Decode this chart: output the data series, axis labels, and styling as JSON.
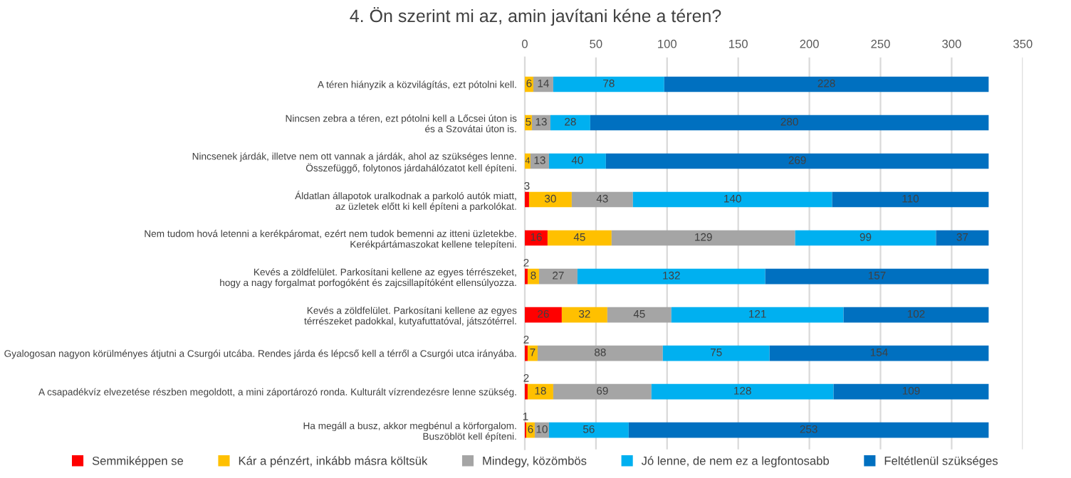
{
  "chart_data": {
    "type": "bar",
    "orientation": "horizontal",
    "stacked": true,
    "title": "4. Ön szerint mi az, amin javítani kéne a téren?",
    "categories": [
      "A téren hiányzik a közvilágítás, ezt pótolni kell.",
      "Nincsen zebra a téren, ezt pótolni kell a Lőcsei úton is\nés a Szovátai úton is.",
      "Nincsenek járdák, illetve nem ott vannak a járdák, ahol az szükséges lenne.\nÖsszefüggő, folytonos járdahálózatot kell építeni.",
      "Áldatlan állapotok uralkodnak a parkoló autók miatt,\naz üzletek előtt ki kell építeni a parkolókat.",
      "Nem tudom hová letenni a kerékpáromat, ezért nem tudok bemenni az itteni üzletekbe.\nKerékpártámaszokat kellene telepíteni.",
      "Kevés a zöldfelület. Parkosítani kellene az egyes térrészeket,\nhogy a nagy forgalmat porfogóként és zajcsillapítóként ellensúlyozza.",
      "Kevés a zöldfelület. Parkosítani kellene az egyes\ntérrészeket padokkal, kutyafuttatóval, játszótérrel.",
      "Gyalogosan nagyon körülményes átjutni a Csurgói utcába. Rendes járda és lépcső kell a térről a Csurgói utca irányába.",
      "A csapadékvíz elvezetése részben megoldott, a mini záportározó ronda. Kulturált vízrendezésre lenne szükség.",
      "Ha megáll a busz, akkor megbénul a körforgalom.\nBuszöblöt kell építeni."
    ],
    "series": [
      {
        "name": "Semmiképpen se",
        "color": "#ff0000",
        "values": [
          null,
          null,
          null,
          3,
          16,
          2,
          26,
          2,
          2,
          1
        ]
      },
      {
        "name": "Kár a pénzért, inkább másra költsük",
        "color": "#ffc000",
        "values": [
          6,
          5,
          4,
          30,
          45,
          8,
          32,
          7,
          18,
          6
        ]
      },
      {
        "name": "Mindegy, közömbös",
        "color": "#a5a5a5",
        "values": [
          14,
          13,
          13,
          43,
          129,
          27,
          45,
          88,
          69,
          10
        ]
      },
      {
        "name": "Jó lenne, de nem ez a legfontosabb",
        "color": "#00b0f0",
        "values": [
          78,
          28,
          40,
          140,
          99,
          132,
          121,
          75,
          128,
          56
        ]
      },
      {
        "name": "Feltétlenül szükséges",
        "color": "#0070c0",
        "values": [
          228,
          280,
          269,
          110,
          37,
          157,
          102,
          154,
          109,
          253
        ]
      }
    ],
    "xlim": [
      0,
      350
    ],
    "xticks": [
      0,
      50,
      100,
      150,
      200,
      250,
      300,
      350
    ],
    "grid": "x",
    "legend": "bottom",
    "data_labels": true
  }
}
